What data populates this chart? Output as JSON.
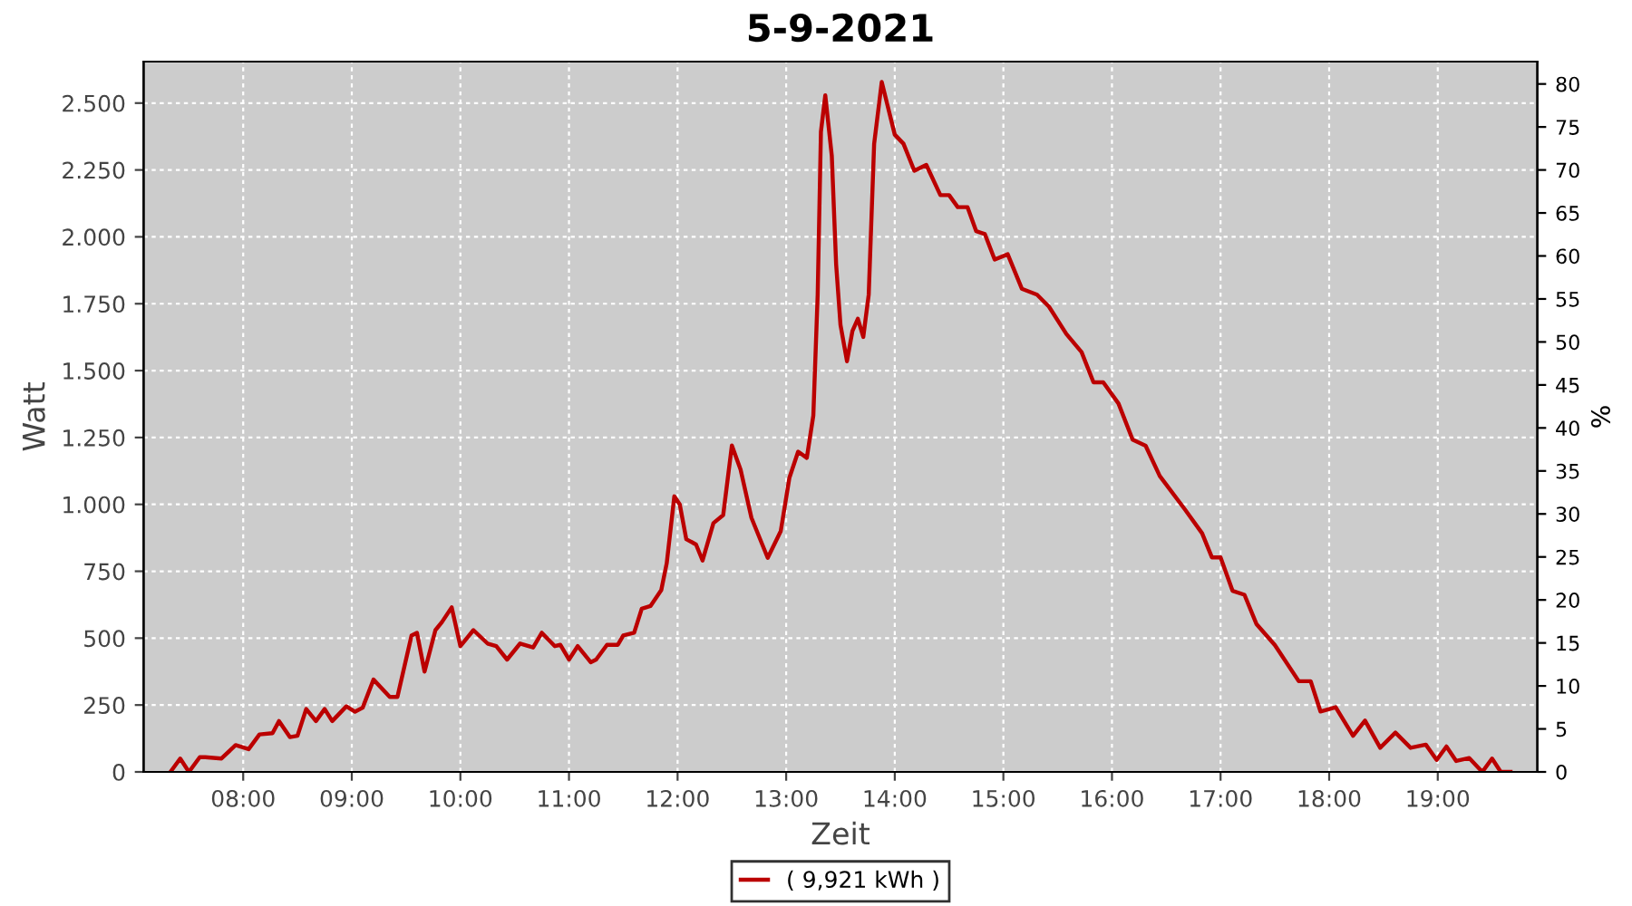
{
  "chart_data": {
    "type": "line",
    "title": "5-9-2021",
    "xlabel": "Zeit",
    "ylabel": "Watt",
    "y2label": "%",
    "xlim": [
      7.083,
      19.917
    ],
    "xticks": [
      {
        "value": 8,
        "label": "08:00"
      },
      {
        "value": 9,
        "label": "09:00"
      },
      {
        "value": 10,
        "label": "10:00"
      },
      {
        "value": 11,
        "label": "11:00"
      },
      {
        "value": 12,
        "label": "12:00"
      },
      {
        "value": 13,
        "label": "13:00"
      },
      {
        "value": 14,
        "label": "14:00"
      },
      {
        "value": 15,
        "label": "15:00"
      },
      {
        "value": 16,
        "label": "16:00"
      },
      {
        "value": 17,
        "label": "17:00"
      },
      {
        "value": 18,
        "label": "18:00"
      },
      {
        "value": 19,
        "label": "19:00"
      }
    ],
    "ylim": [
      0,
      2655
    ],
    "yticks": [
      0,
      250,
      500,
      750,
      {
        "value": 1000,
        "label": "1.000"
      },
      {
        "value": 1250,
        "label": "1.250"
      },
      {
        "value": 1500,
        "label": "1.500"
      },
      {
        "value": 1750,
        "label": "1.750"
      },
      {
        "value": 2000,
        "label": "2.000"
      },
      {
        "value": 2250,
        "label": "2.250"
      },
      {
        "value": 2500,
        "label": "2.500"
      }
    ],
    "y2lim": [
      0,
      82.6
    ],
    "y2ticks": [
      0,
      5,
      10,
      15,
      20,
      25,
      30,
      35,
      40,
      45,
      50,
      55,
      60,
      65,
      70,
      75,
      80
    ],
    "grid": true,
    "legend": "bottom",
    "line_style": "solid",
    "series": [
      {
        "name": "( 9,921 kWh )",
        "color": "#bb0000",
        "x": [
          7.33,
          7.42,
          7.5,
          7.6,
          7.65,
          7.8,
          7.93,
          8.05,
          8.15,
          8.27,
          8.33,
          8.43,
          8.5,
          8.58,
          8.67,
          8.75,
          8.82,
          8.95,
          9.03,
          9.1,
          9.2,
          9.35,
          9.42,
          9.55,
          9.6,
          9.67,
          9.77,
          9.83,
          9.92,
          10.0,
          10.12,
          10.25,
          10.33,
          10.43,
          10.55,
          10.67,
          10.75,
          10.87,
          10.92,
          11.0,
          11.08,
          11.2,
          11.25,
          11.35,
          11.45,
          11.5,
          11.6,
          11.67,
          11.75,
          11.85,
          11.9,
          11.97,
          12.02,
          12.08,
          12.17,
          12.23,
          12.33,
          12.42,
          12.5,
          12.58,
          12.68,
          12.78,
          12.83,
          12.95,
          13.03,
          13.11,
          13.19,
          13.25,
          13.29,
          13.32,
          13.36,
          13.42,
          13.46,
          13.5,
          13.56,
          13.61,
          13.66,
          13.71,
          13.76,
          13.81,
          13.88,
          14.0,
          14.08,
          14.18,
          14.29,
          14.42,
          14.5,
          14.58,
          14.67,
          14.75,
          14.83,
          14.92,
          15.04,
          15.17,
          15.31,
          15.42,
          15.58,
          15.72,
          15.83,
          15.92,
          16.06,
          16.19,
          16.31,
          16.44,
          16.67,
          16.83,
          16.92,
          17.0,
          17.11,
          17.22,
          17.33,
          17.5,
          17.72,
          17.83,
          17.92,
          18.06,
          18.22,
          18.33,
          18.47,
          18.61,
          18.75,
          18.89,
          18.99,
          19.08,
          19.17,
          19.29,
          19.41,
          19.5,
          19.58,
          19.67
        ],
        "values": [
          0,
          50,
          0,
          55,
          55,
          50,
          100,
          85,
          140,
          145,
          190,
          130,
          135,
          235,
          190,
          235,
          190,
          245,
          225,
          240,
          345,
          280,
          280,
          510,
          520,
          375,
          530,
          560,
          615,
          470,
          530,
          480,
          470,
          420,
          480,
          465,
          520,
          470,
          475,
          420,
          470,
          410,
          420,
          475,
          475,
          510,
          520,
          610,
          620,
          680,
          780,
          1030,
          1000,
          870,
          850,
          790,
          930,
          960,
          1220,
          1130,
          950,
          850,
          800,
          900,
          1100,
          1197,
          1174,
          1332,
          1784,
          2393,
          2529,
          2303,
          1897,
          1671,
          1535,
          1648,
          1694,
          1626,
          1784,
          2348,
          2579,
          2382,
          2348,
          2247,
          2269,
          2156,
          2156,
          2111,
          2111,
          2021,
          2010,
          1915,
          1935,
          1806,
          1784,
          1739,
          1637,
          1569,
          1456,
          1456,
          1377,
          1242,
          1219,
          1106,
          982,
          892,
          802,
          802,
          677,
          662,
          553,
          474,
          339,
          339,
          226,
          242,
          135,
          192,
          90,
          147,
          90,
          102,
          45,
          95,
          41,
          52,
          0,
          50,
          0,
          0
        ]
      }
    ]
  }
}
